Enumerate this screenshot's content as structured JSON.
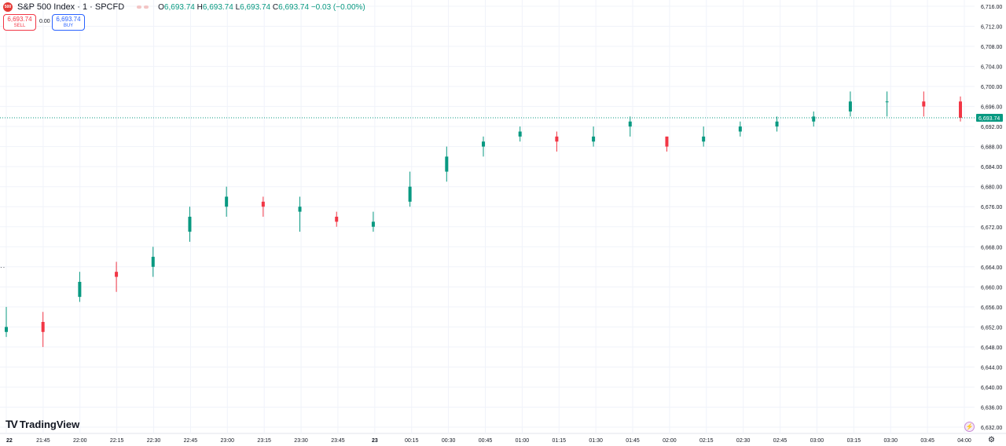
{
  "legend": {
    "logo_text": "500",
    "title": "S&P 500 Index · 1 · SPCFD",
    "o_label": "O",
    "o_value": "6,693.74",
    "h_label": "H",
    "h_value": "6,693.74",
    "l_label": "L",
    "l_value": "6,693.74",
    "c_label": "C",
    "c_value": "6,693.74",
    "change": "−0.03 (−0.00%)"
  },
  "trade": {
    "sell_price": "6,693.74",
    "sell_label": "SELL",
    "spread": "0.00",
    "buy_price": "6,693.74",
    "buy_label": "BUY"
  },
  "price_axis": {
    "labels": [
      "6,716.00",
      "6,712.00",
      "6,708.00",
      "6,704.00",
      "6,700.00",
      "6,696.00",
      "6,692.00",
      "6,688.00",
      "6,684.00",
      "6,680.00",
      "6,676.00",
      "6,672.00",
      "6,668.00",
      "6,664.00",
      "6,660.00",
      "6,656.00",
      "6,652.00",
      "6,648.00",
      "6,644.00",
      "6,640.00",
      "6,636.00",
      "6,632.00"
    ],
    "current_price": "6,693.74"
  },
  "time_axis": {
    "labels": [
      "22",
      "21:45",
      "22:00",
      "22:15",
      "22:30",
      "22:45",
      "23:00",
      "23:15",
      "23:30",
      "23:45",
      "23",
      "00:15",
      "00:30",
      "00:45",
      "01:00",
      "01:15",
      "01:30",
      "01:45",
      "02:00",
      "02:15",
      "02:30",
      "02:45",
      "03:00",
      "03:15",
      "03:30",
      "03:45",
      "04:00"
    ]
  },
  "brand": {
    "name": "TradingView",
    "mark": "TV"
  },
  "colors": {
    "up": "#089981",
    "down": "#f23645",
    "grid": "#f0f3fa",
    "price_line": "#089981"
  },
  "chart_data": {
    "type": "candlestick",
    "symbol": "S&P 500 Index · 1 · SPCFD",
    "ylim": [
      6632,
      6716
    ],
    "x": [
      "21:35",
      "21:45",
      "22:00",
      "22:15",
      "22:30",
      "22:45",
      "23:00",
      "23:15",
      "23:30",
      "23:45",
      "00:00",
      "00:15",
      "00:30",
      "00:45",
      "01:00",
      "01:15",
      "01:30",
      "01:45",
      "02:00",
      "02:15",
      "02:30",
      "02:45",
      "03:00",
      "03:15",
      "03:30",
      "03:45",
      "04:00"
    ],
    "close": [
      6652,
      6651,
      6661,
      6662,
      6666,
      6674,
      6678,
      6676,
      6676,
      6673,
      6673,
      6680,
      6686,
      6689,
      6691,
      6689,
      6690,
      6693,
      6688,
      6690,
      6692,
      6693,
      6694,
      6697,
      6697,
      6696,
      6693.74
    ],
    "open": [
      6651,
      6653,
      6658,
      6663,
      6664,
      6671,
      6676,
      6677,
      6675,
      6674,
      6672,
      6677,
      6683,
      6688,
      6690,
      6690,
      6689,
      6692,
      6690,
      6689,
      6691,
      6692,
      6693,
      6695,
      6697,
      6697,
      6697
    ],
    "high": [
      6656,
      6655,
      6663,
      6665,
      6668,
      6676,
      6680,
      6678,
      6678,
      6675,
      6675,
      6683,
      6688,
      6690,
      6692,
      6691,
      6692,
      6694,
      6690,
      6692,
      6693,
      6694,
      6695,
      6699,
      6699,
      6699,
      6698
    ],
    "low": [
      6650,
      6648,
      6657,
      6659,
      6662,
      6669,
      6674,
      6674,
      6671,
      6672,
      6671,
      6676,
      6681,
      6686,
      6689,
      6687,
      6688,
      6690,
      6687,
      6688,
      6690,
      6691,
      6692,
      6694,
      6694,
      6694,
      6693
    ]
  }
}
